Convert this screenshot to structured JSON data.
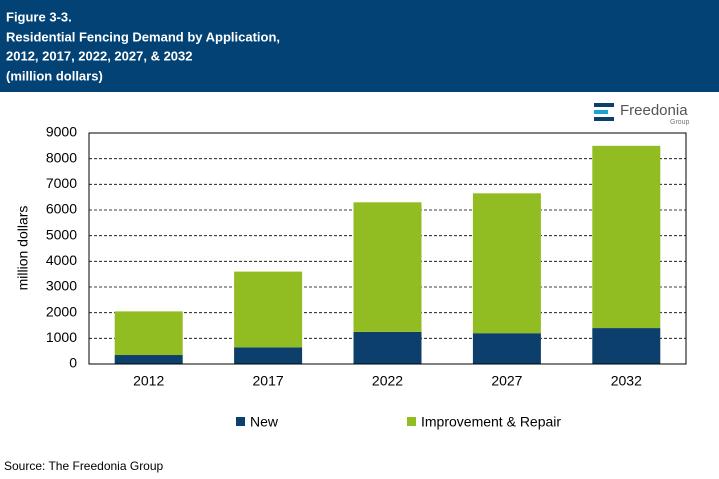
{
  "chart_data": {
    "type": "stacked_bar",
    "figure": "Figure 3-3.",
    "title": [
      "Residential Fencing Demand by Application,",
      "2012, 2017, 2022, 2027, & 2032"
    ],
    "subtitle": "(million dollars)",
    "logo": {
      "name": "Freedonia",
      "sub": "Group"
    },
    "y_label": "million dollars",
    "categories": [
      "2012",
      "2017",
      "2022",
      "2027",
      "2032"
    ],
    "series": [
      {
        "name": "New",
        "color": "#0c3f6c",
        "values": [
          350,
          650,
          1250,
          1200,
          1400
        ]
      },
      {
        "name": "Improvement & Repair",
        "color": "#92bd22",
        "values": [
          1700,
          2950,
          5050,
          5450,
          7100
        ]
      }
    ],
    "ylim": [
      0,
      9000
    ],
    "yticks": [
      0,
      1000,
      2000,
      3000,
      4000,
      5000,
      6000,
      7000,
      8000,
      9000
    ],
    "grid": true,
    "legend": "bottom",
    "source": "Source: The Freedonia Group"
  }
}
